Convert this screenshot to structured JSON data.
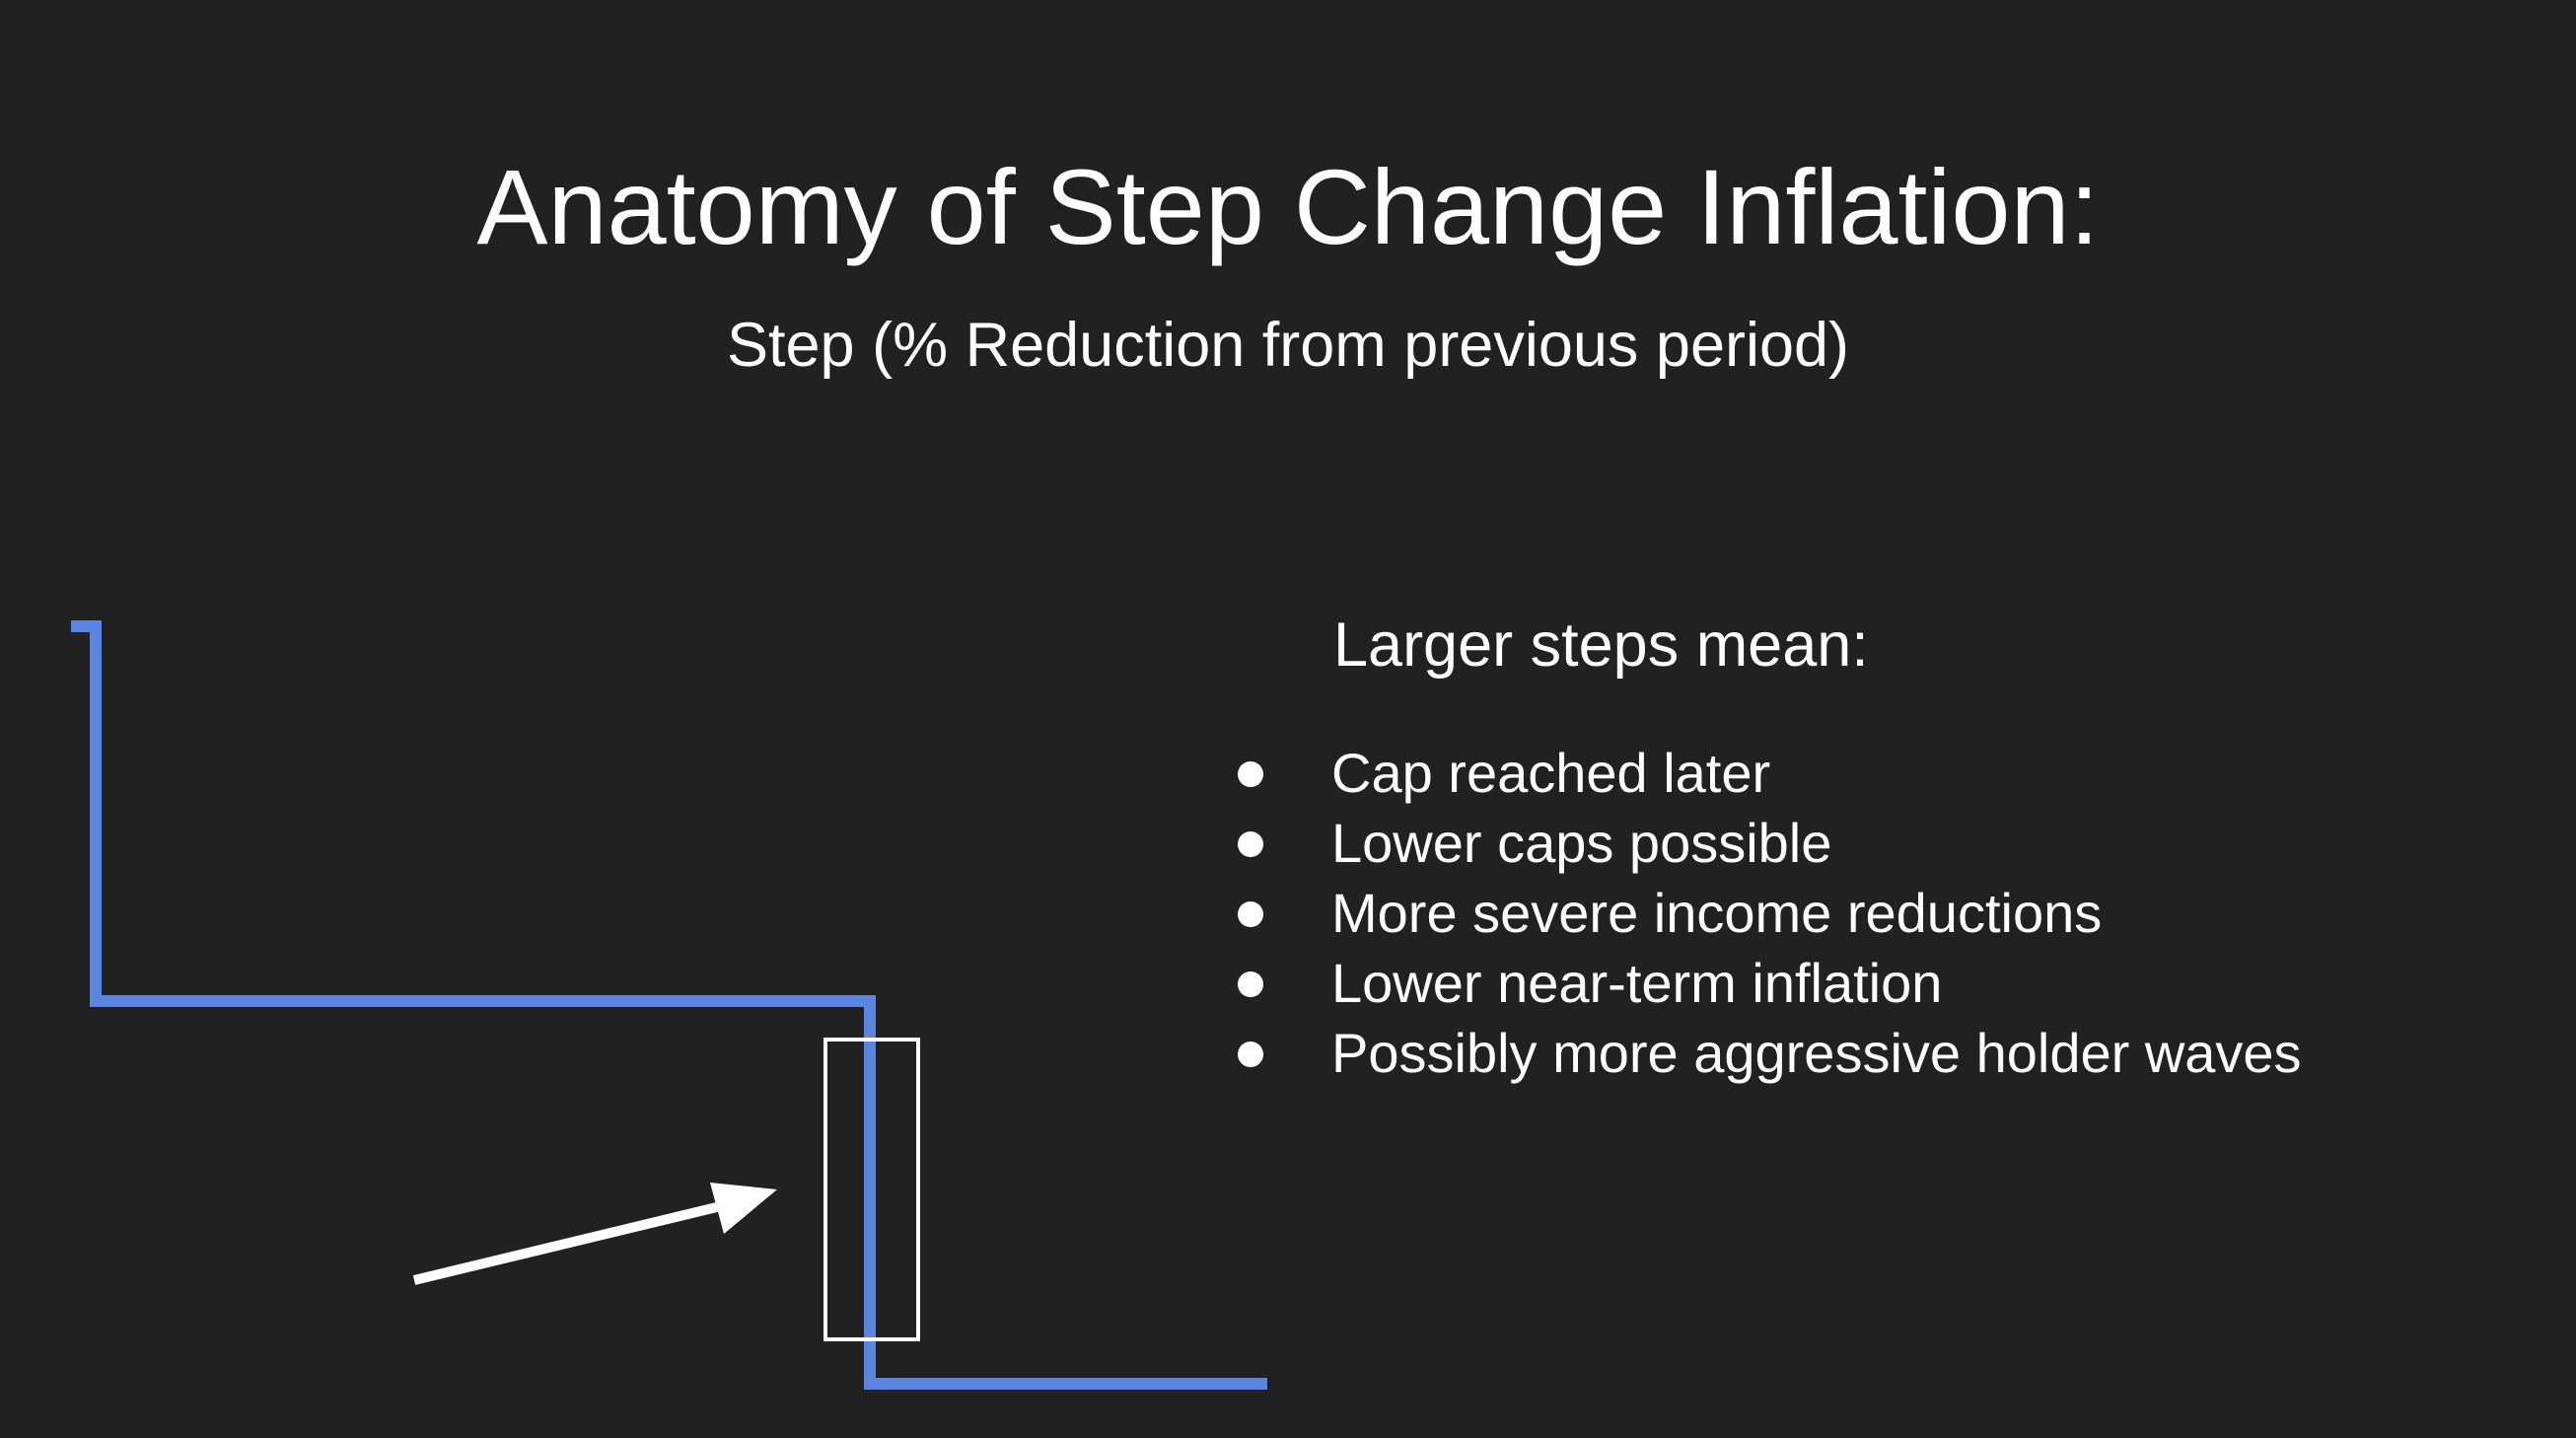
{
  "slide": {
    "title": "Anatomy of Step Change Inflation:",
    "subtitle": "Step (% Reduction from previous period)"
  },
  "colors": {
    "background": "#212121",
    "step_line": "#5a85e0",
    "text": "#ffffff"
  },
  "panel": {
    "heading": "Larger steps mean:",
    "bullets": [
      "Cap reached later",
      "Lower caps possible",
      "More severe income reductions",
      "Lower near-term inflation",
      "Possibly more aggressive holder waves"
    ]
  },
  "diagram": {
    "line_icon": "step-down-line",
    "highlight_icon": "highlight-rectangle",
    "pointer_icon": "arrow-right-icon"
  }
}
